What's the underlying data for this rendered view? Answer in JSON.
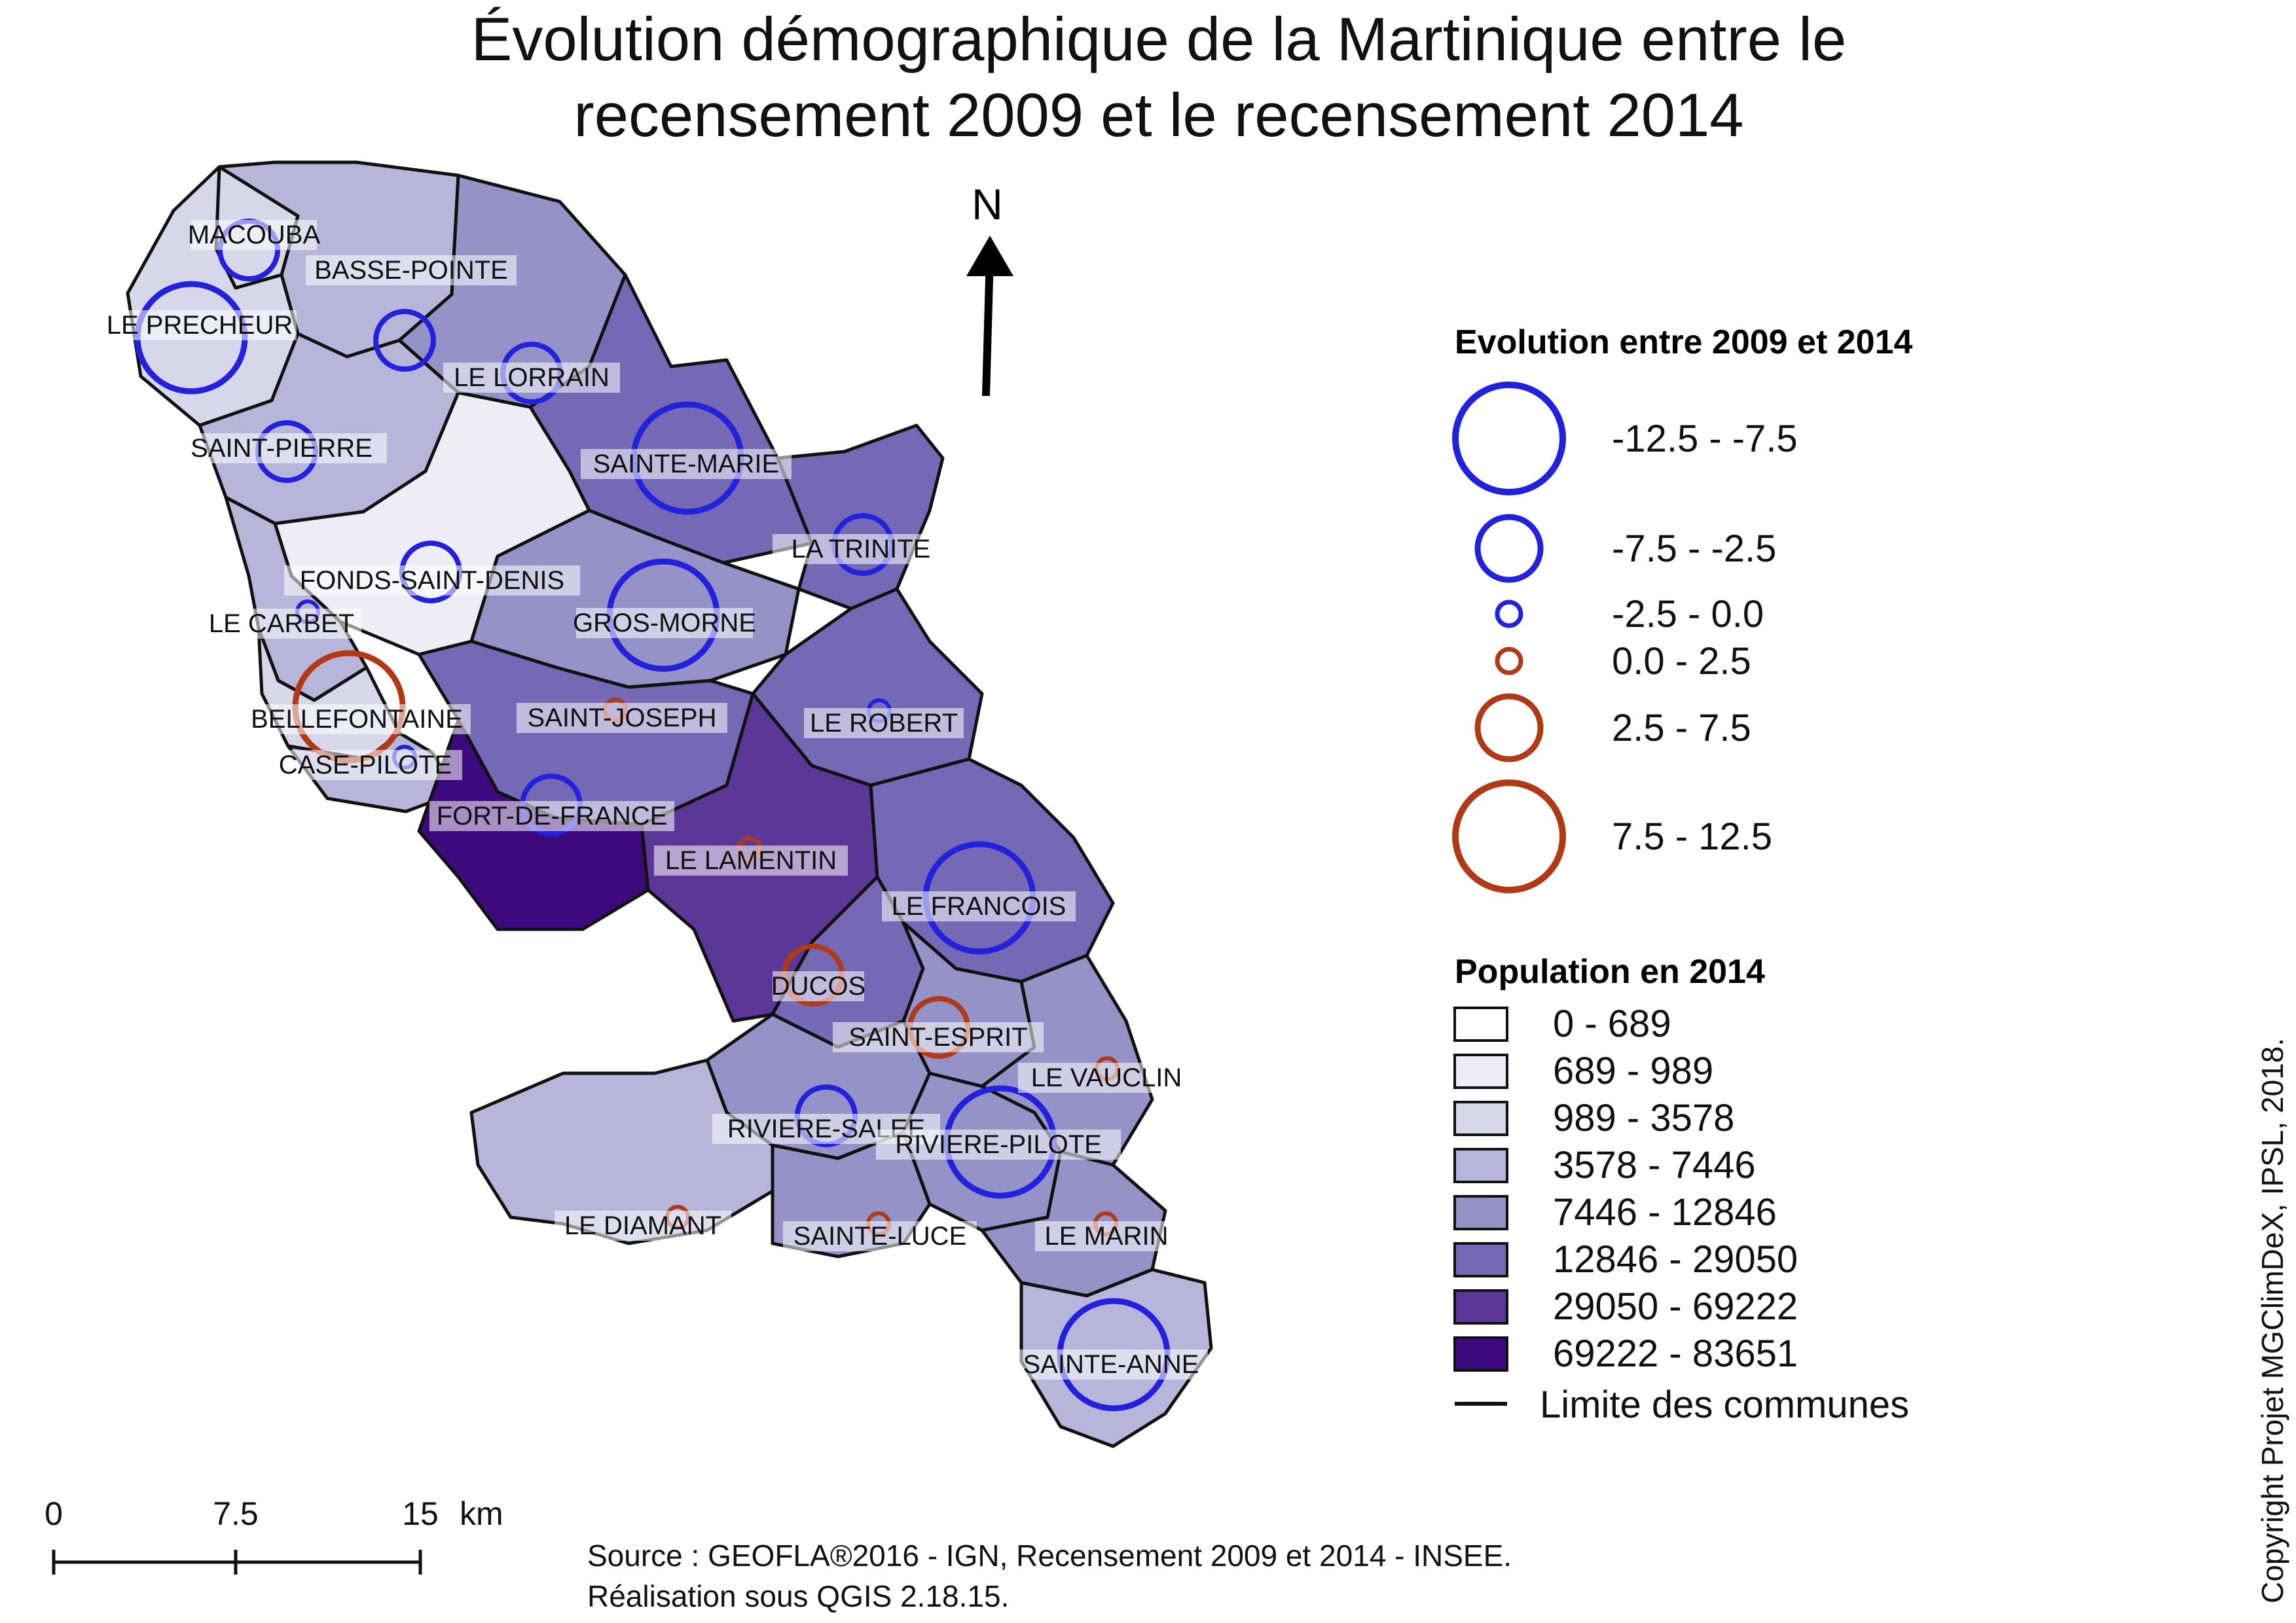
{
  "title": {
    "line1": "Évolution démographique de la Martinique entre le",
    "line2": "recensement 2009 et le recensement 2014"
  },
  "north_arrow": {
    "label": "N"
  },
  "legend_evolution": {
    "title": "Evolution entre 2009 et 2014",
    "negative_color": "#2222dd",
    "positive_color": "#b03a16",
    "classes": [
      {
        "label": "-12.5 - -7.5",
        "sign": "negative"
      },
      {
        "label": "-7.5 - -2.5",
        "sign": "negative"
      },
      {
        "label": "-2.5 - 0.0",
        "sign": "negative"
      },
      {
        "label": "0.0 - 2.5",
        "sign": "positive"
      },
      {
        "label": "2.5 - 7.5",
        "sign": "positive"
      },
      {
        "label": "7.5 - 12.5",
        "sign": "positive"
      }
    ]
  },
  "legend_population": {
    "title": "Population en 2014",
    "classes": [
      {
        "label": "0 - 689",
        "color": "#ffffff"
      },
      {
        "label": "689 - 989",
        "color": "#eeedf6"
      },
      {
        "label": "989 - 3578",
        "color": "#d8d7ea"
      },
      {
        "label": "3578 - 7446",
        "color": "#b7b6da"
      },
      {
        "label": "7446 - 12846",
        "color": "#9592c8"
      },
      {
        "label": "12846 - 29050",
        "color": "#7569b5"
      },
      {
        "label": "29050 - 69222",
        "color": "#5b3897"
      },
      {
        "label": "69222 - 83651",
        "color": "#3d0a7d"
      }
    ],
    "boundary_label": "Limite des communes"
  },
  "scale_bar": {
    "ticks": [
      "0",
      "7.5",
      "15"
    ],
    "unit": "km"
  },
  "source": {
    "line1": "Source : GEOFLA®2016 - IGN, Recensement 2009 et 2014 - INSEE.",
    "line2": "Réalisation sous QGIS 2.18.15."
  },
  "copyright": "Copyright Projet MGClimDeX, IPSL, 2018.",
  "communes": [
    {
      "name": "MACOUBA",
      "population_class": 2,
      "evolution_class": 1
    },
    {
      "name": "BASSE-POINTE",
      "population_class": 3,
      "evolution_class": 1
    },
    {
      "name": "LE PRECHEUR",
      "population_class": 2,
      "evolution_class": 0
    },
    {
      "name": "LE LORRAIN",
      "population_class": 4,
      "evolution_class": 1
    },
    {
      "name": "SAINT-PIERRE",
      "population_class": 3,
      "evolution_class": 1
    },
    {
      "name": "SAINTE-MARIE",
      "population_class": 5,
      "evolution_class": 0
    },
    {
      "name": "LA TRINITE",
      "population_class": 5,
      "evolution_class": 1
    },
    {
      "name": "FONDS-SAINT-DENIS",
      "population_class": 1,
      "evolution_class": 1
    },
    {
      "name": "LE CARBET",
      "population_class": 3,
      "evolution_class": 2
    },
    {
      "name": "GROS-MORNE",
      "population_class": 4,
      "evolution_class": 0
    },
    {
      "name": "BELLEFONTAINE",
      "population_class": 2,
      "evolution_class": 5
    },
    {
      "name": "SAINT-JOSEPH",
      "population_class": 5,
      "evolution_class": 3
    },
    {
      "name": "LE ROBERT",
      "population_class": 5,
      "evolution_class": 2
    },
    {
      "name": "CASE-PILOTE",
      "population_class": 3,
      "evolution_class": 2
    },
    {
      "name": "FORT-DE-FRANCE",
      "population_class": 7,
      "evolution_class": 1
    },
    {
      "name": "LE LAMENTIN",
      "population_class": 6,
      "evolution_class": 3
    },
    {
      "name": "LE FRANCOIS",
      "population_class": 5,
      "evolution_class": 0
    },
    {
      "name": "DUCOS",
      "population_class": 5,
      "evolution_class": 4
    },
    {
      "name": "SAINT-ESPRIT",
      "population_class": 4,
      "evolution_class": 4
    },
    {
      "name": "LE VAUCLIN",
      "population_class": 4,
      "evolution_class": 3
    },
    {
      "name": "RIVIERE-SALEE",
      "population_class": 4,
      "evolution_class": 1
    },
    {
      "name": "RIVIERE-PILOTE",
      "population_class": 4,
      "evolution_class": 0
    },
    {
      "name": "LE DIAMANT",
      "population_class": 3,
      "evolution_class": 3
    },
    {
      "name": "SAINTE-LUCE",
      "population_class": 4,
      "evolution_class": 3
    },
    {
      "name": "LE MARIN",
      "population_class": 4,
      "evolution_class": 3
    },
    {
      "name": "SAINTE-ANNE",
      "population_class": 3,
      "evolution_class": 0
    }
  ]
}
